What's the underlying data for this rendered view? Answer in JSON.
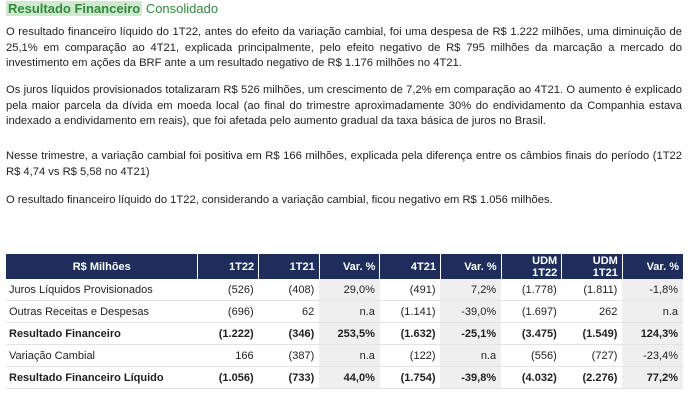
{
  "header": {
    "title_highlight": "Resultado Financeiro",
    "title_rest": " Consolidado"
  },
  "paragraphs": [
    "O resultado financeiro líquido do 1T22, antes do efeito da variação cambial, foi uma despesa de R$ 1.222 milhões, uma diminuição de 25,1% em comparação ao 4T21, explicada principalmente, pelo efeito negativo de R$ 795 milhões da marcação a mercado do investimento em ações da BRF ante a um resultado negativo de R$ 1.176 milhões no 4T21.",
    "Os juros líquidos provisionados totalizaram R$ 526 milhões, um crescimento de 7,2% em comparação ao 4T21. O aumento é explicado pela maior parcela da dívida em moeda local (ao final do trimestre aproximadamente 30% do endividamento da Companhia estava indexado a endividamento em reais), que foi afetada pelo aumento gradual da taxa básica de juros no Brasil.",
    "Nesse trimestre, a variação cambial foi positiva em R$ 166 milhões, explicada pela diferença entre os câmbios finais do período (1T22 R$ 4,74 vs R$ 5,58 no 4T21)",
    "O resultado financeiro líquido do 1T22, considerando a variação cambial, ficou negativo em R$ 1.056 milhões."
  ],
  "table": {
    "headers": [
      "R$ Milhões",
      "1T22",
      "1T21",
      "Var. %",
      "4T21",
      "Var. %",
      "UDM 1T22",
      "UDM 1T21",
      "Var. %"
    ],
    "rows": [
      [
        "Juros Líquidos Provisionados",
        "(526)",
        "(408)",
        "29,0%",
        "(491)",
        "7,2%",
        "(1.778)",
        "(1.811)",
        "-1,8%"
      ],
      [
        "Outras Receitas e Despesas",
        "(696)",
        "62",
        "n.a",
        "(1.141)",
        "-39,0%",
        "(1.697)",
        "262",
        "n.a"
      ],
      [
        "Resultado Financeiro",
        "(1.222)",
        "(346)",
        "253,5%",
        "(1.632)",
        "-25,1%",
        "(3.475)",
        "(1.549)",
        "124,3%"
      ],
      [
        "Variação Cambial",
        "166",
        "(387)",
        "n.a",
        "(122)",
        "n.a",
        "(556)",
        "(727)",
        "-23,4%"
      ],
      [
        "Resultado Financeiro Líquido",
        "(1.056)",
        "(733)",
        "44,0%",
        "(1.754)",
        "-39,8%",
        "(4.032)",
        "(2.276)",
        "77,2%"
      ]
    ]
  }
}
